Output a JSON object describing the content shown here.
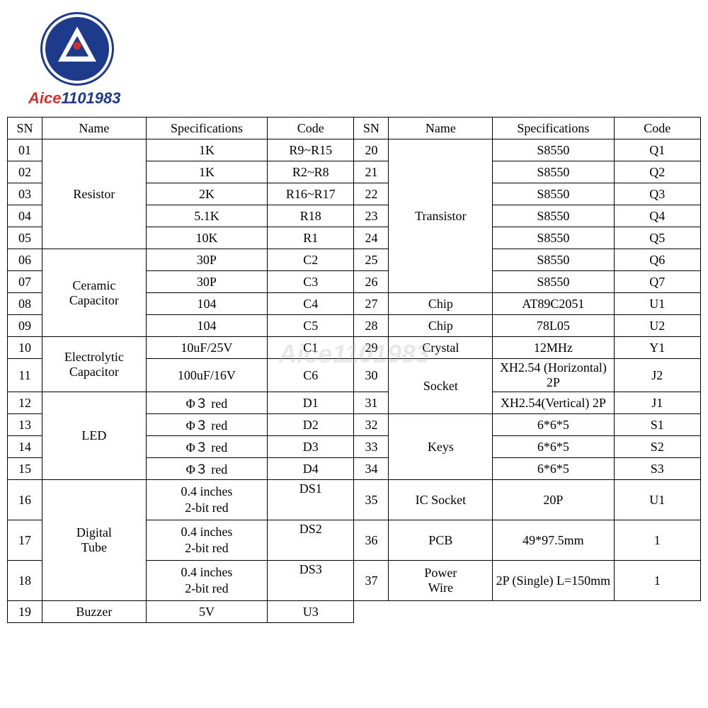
{
  "logo": {
    "text_part1": "Aice",
    "text_part2": "1101983"
  },
  "watermark": "Aice1101983",
  "table": {
    "headers": [
      "SN",
      "Name",
      "Specifications",
      "Code",
      "SN",
      "Name",
      "Specifications",
      "Code"
    ],
    "left_groups": [
      {
        "name": "Resistor",
        "rows": [
          {
            "sn": "01",
            "spec": "1K",
            "code": "R9~R15"
          },
          {
            "sn": "02",
            "spec": "1K",
            "code": "R2~R8"
          },
          {
            "sn": "03",
            "spec": "2K",
            "code": "R16~R17"
          },
          {
            "sn": "04",
            "spec": "5.1K",
            "code": "R18"
          },
          {
            "sn": "05",
            "spec": "10K",
            "code": "R1"
          }
        ]
      },
      {
        "name": "Ceramic Capacitor",
        "rows": [
          {
            "sn": "06",
            "spec": "30P",
            "code": "C2"
          },
          {
            "sn": "07",
            "spec": "30P",
            "code": "C3"
          },
          {
            "sn": "08",
            "spec": "104",
            "code": "C4"
          },
          {
            "sn": "09",
            "spec": "104",
            "code": "C5"
          }
        ]
      },
      {
        "name": "Electrolytic Capacitor",
        "rows": [
          {
            "sn": "10",
            "spec": "10uF/25V",
            "code": "C1"
          },
          {
            "sn": "11",
            "spec": "100uF/16V",
            "code": "C6"
          }
        ]
      },
      {
        "name": "LED",
        "rows": [
          {
            "sn": "12",
            "spec": "Φ３ red",
            "code": "D1"
          },
          {
            "sn": "13",
            "spec": "Φ３ red",
            "code": "D2"
          },
          {
            "sn": "14",
            "spec": "Φ３ red",
            "code": "D3"
          },
          {
            "sn": "15",
            "spec": "Φ３ red",
            "code": "D4"
          }
        ]
      },
      {
        "name": "Digital Tube",
        "rows": [
          {
            "sn": "16",
            "spec": "0.4 inches 2-bit red",
            "code": "DS1"
          },
          {
            "sn": "17",
            "spec": "0.4 inches 2-bit red",
            "code": "DS2"
          },
          {
            "sn": "18",
            "spec": "0.4 inches 2-bit red",
            "code": "DS3"
          }
        ]
      },
      {
        "name": "Buzzer",
        "rows": [
          {
            "sn": "19",
            "spec": "5V",
            "code": "U3"
          }
        ]
      }
    ],
    "right_groups": [
      {
        "name": "Transistor",
        "rows": [
          {
            "sn": "20",
            "spec": "S8550",
            "code": "Q1"
          },
          {
            "sn": "21",
            "spec": "S8550",
            "code": "Q2"
          },
          {
            "sn": "22",
            "spec": "S8550",
            "code": "Q3"
          },
          {
            "sn": "23",
            "spec": "S8550",
            "code": "Q4"
          },
          {
            "sn": "24",
            "spec": "S8550",
            "code": "Q5"
          },
          {
            "sn": "25",
            "spec": "S8550",
            "code": "Q6"
          },
          {
            "sn": "26",
            "spec": "S8550",
            "code": "Q7"
          }
        ]
      },
      {
        "name": "Chip",
        "rows": [
          {
            "sn": "27",
            "spec": "AT89C2051",
            "code": "U1"
          }
        ]
      },
      {
        "name": "Chip",
        "rows": [
          {
            "sn": "28",
            "spec": "78L05",
            "code": "U2"
          }
        ]
      },
      {
        "name": "Crystal",
        "rows": [
          {
            "sn": "29",
            "spec": "12MHz",
            "code": "Y1"
          }
        ]
      },
      {
        "name": "Socket",
        "rows": [
          {
            "sn": "30",
            "spec": "XH2.54 (Horizontal) 2P",
            "code": "J2"
          },
          {
            "sn": "31",
            "spec": "XH2.54(Vertical)   2P",
            "code": "J1"
          }
        ]
      },
      {
        "name": "Keys",
        "rows": [
          {
            "sn": "32",
            "spec": "6*6*5",
            "code": "S1"
          },
          {
            "sn": "33",
            "spec": "6*6*5",
            "code": "S2"
          },
          {
            "sn": "34",
            "spec": "6*6*5",
            "code": "S3"
          }
        ]
      },
      {
        "name": "IC Socket",
        "rows": [
          {
            "sn": "35",
            "spec": "20P",
            "code": "U1"
          }
        ]
      },
      {
        "name": "PCB",
        "rows": [
          {
            "sn": "36",
            "spec": "49*97.5mm",
            "code": "1"
          }
        ]
      },
      {
        "name": "Power Wire",
        "rows": [
          {
            "sn": "37",
            "spec": "2P (Single) L=150mm",
            "code": "1"
          }
        ]
      }
    ],
    "styling": {
      "border_color": "#000000",
      "border_width": 1.5,
      "font_family": "Times New Roman",
      "font_size": 18,
      "background": "#ffffff"
    }
  }
}
